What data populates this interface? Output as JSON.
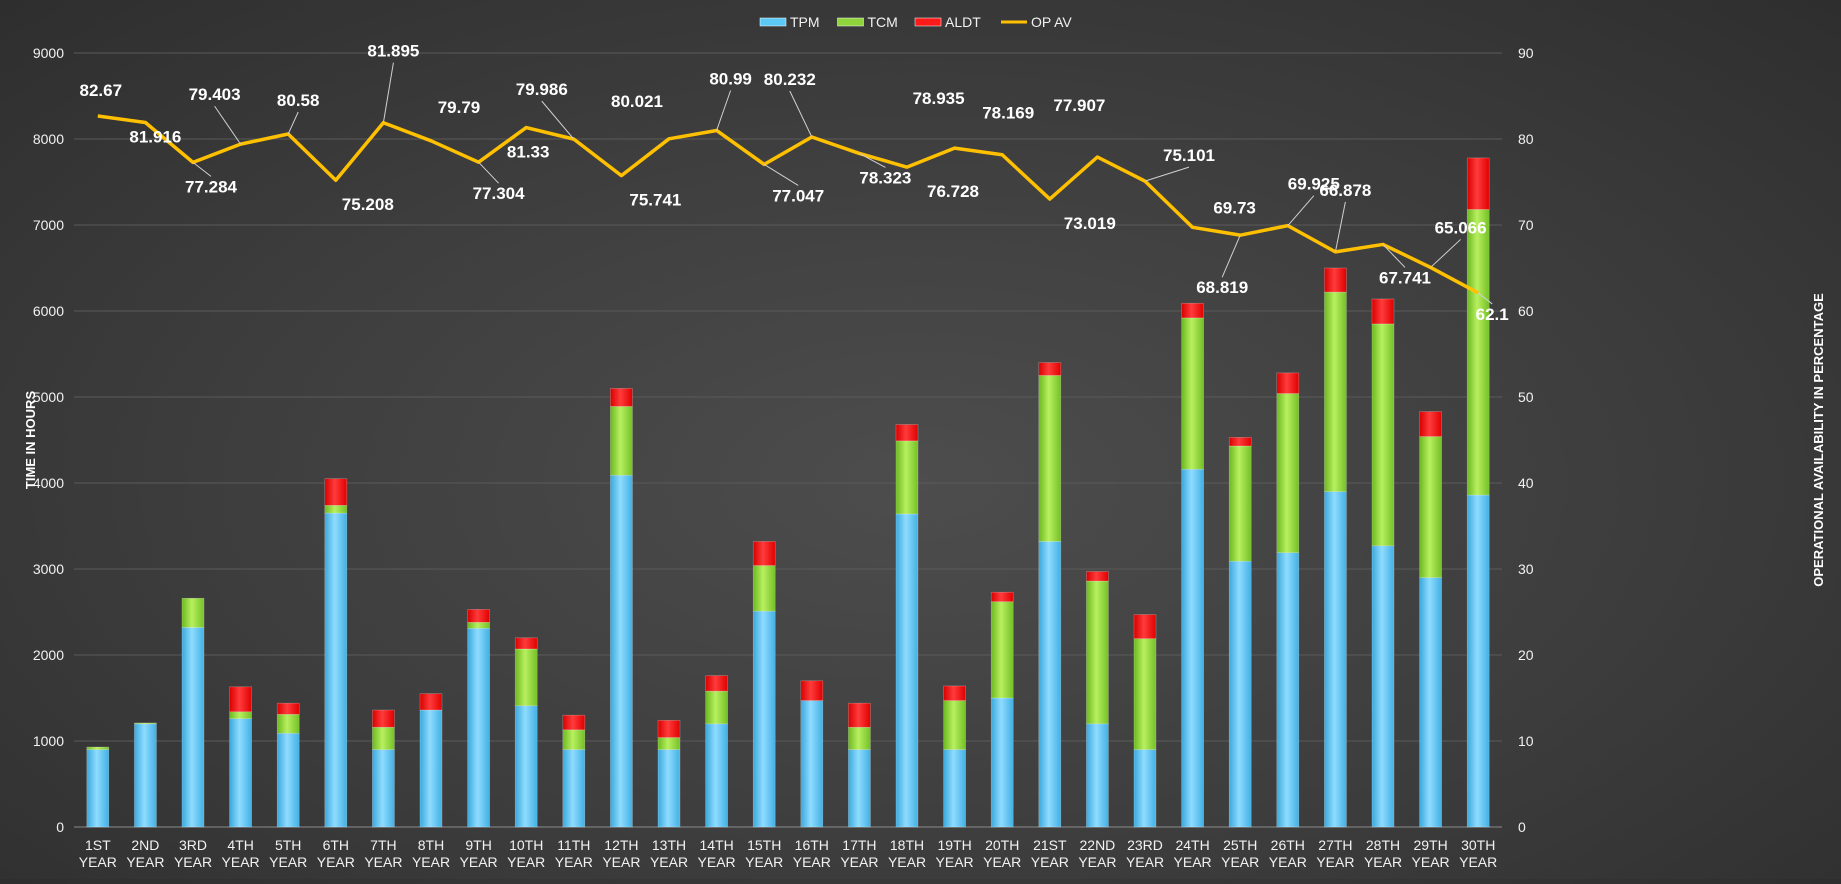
{
  "chart_data": {
    "type": "bar",
    "title": "",
    "ylabel": "TIME IN HOURS",
    "y2label": "OPERATIONAL AVAILABILITY IN PERCENTAGE",
    "ylim": [
      0,
      9000
    ],
    "y2lim": [
      0,
      90
    ],
    "yticks": [
      "0",
      "1000",
      "2000",
      "3000",
      "4000",
      "5000",
      "6000",
      "7000",
      "8000",
      "9000"
    ],
    "y2ticks": [
      "0",
      "10",
      "20",
      "30",
      "40",
      "50",
      "60",
      "70",
      "80",
      "90"
    ],
    "legend_position": "top-center",
    "grid": true,
    "categories": [
      [
        "1ST",
        "YEAR"
      ],
      [
        "2ND",
        "YEAR"
      ],
      [
        "3RD",
        "YEAR"
      ],
      [
        "4TH",
        "YEAR"
      ],
      [
        "5TH",
        "YEAR"
      ],
      [
        "6TH",
        "YEAR"
      ],
      [
        "7TH",
        "YEAR"
      ],
      [
        "8TH",
        "YEAR"
      ],
      [
        "9TH",
        "YEAR"
      ],
      [
        "10TH",
        "YEAR"
      ],
      [
        "11TH",
        "YEAR"
      ],
      [
        "12TH",
        "YEAR"
      ],
      [
        "13TH",
        "YEAR"
      ],
      [
        "14TH",
        "YEAR"
      ],
      [
        "15TH",
        "YEAR"
      ],
      [
        "16TH",
        "YEAR"
      ],
      [
        "17TH",
        "YEAR"
      ],
      [
        "18TH",
        "YEAR"
      ],
      [
        "19TH",
        "YEAR"
      ],
      [
        "20TH",
        "YEAR"
      ],
      [
        "21ST",
        "YEAR"
      ],
      [
        "22ND",
        "YEAR"
      ],
      [
        "23RD",
        "YEAR"
      ],
      [
        "24TH",
        "YEAR"
      ],
      [
        "25TH",
        "YEAR"
      ],
      [
        "26TH",
        "YEAR"
      ],
      [
        "27TH",
        "YEAR"
      ],
      [
        "28TH",
        "YEAR"
      ],
      [
        "29TH",
        "YEAR"
      ],
      [
        "30TH",
        "YEAR"
      ]
    ],
    "series": [
      {
        "name": "TPM",
        "stack": true,
        "axis": "left",
        "color": "#5bc8f5",
        "values": [
          900,
          1200,
          2320,
          1260,
          1090,
          3650,
          900,
          1360,
          2310,
          1410,
          900,
          4090,
          900,
          1200,
          2510,
          1470,
          900,
          3640,
          900,
          1500,
          3320,
          1200,
          900,
          4160,
          3090,
          3190,
          3900,
          3270,
          2900,
          3860
        ]
      },
      {
        "name": "TCM",
        "stack": true,
        "axis": "left",
        "color": "#8ed43a",
        "values": [
          30,
          10,
          340,
          80,
          220,
          90,
          260,
          0,
          70,
          660,
          230,
          800,
          140,
          380,
          530,
          0,
          260,
          850,
          570,
          1120,
          1930,
          1660,
          1290,
          1760,
          1340,
          1850,
          2320,
          2580,
          1640,
          3320
        ]
      },
      {
        "name": "ALDT",
        "stack": true,
        "axis": "left",
        "color": "#ff1a1a",
        "values": [
          0,
          0,
          0,
          290,
          130,
          310,
          200,
          190,
          150,
          130,
          170,
          210,
          200,
          180,
          280,
          230,
          280,
          190,
          170,
          110,
          150,
          110,
          280,
          170,
          100,
          240,
          280,
          290,
          290,
          600
        ]
      },
      {
        "name": "OP AV",
        "type": "line",
        "axis": "right",
        "color": "#ffc000",
        "values": [
          82.67,
          81.916,
          77.284,
          79.403,
          80.58,
          75.208,
          81.895,
          79.79,
          77.304,
          81.33,
          79.986,
          75.741,
          80.021,
          80.99,
          77.047,
          80.232,
          78.323,
          76.728,
          78.935,
          78.169,
          73.019,
          77.907,
          75.101,
          69.73,
          68.819,
          69.925,
          66.878,
          67.741,
          65.066,
          62.1
        ],
        "labels": [
          "82.67",
          "81.916",
          "77.284",
          "79.403",
          "80.58",
          "75.208",
          "81.895",
          "79.79",
          "77.304",
          "81.33",
          "79.986",
          "75.741",
          "80.021",
          "80.99",
          "77.047",
          "80.232",
          "78.323",
          "76.728",
          "78.935",
          "78.169",
          "73.019",
          "77.907",
          "75.101",
          "69.73",
          "68.819",
          "69.925",
          "66.878",
          "67.741",
          "65.066",
          "62.1"
        ]
      }
    ],
    "legend": [
      {
        "label": "TPM",
        "color": "#5bc8f5",
        "kind": "bar"
      },
      {
        "label": "TCM",
        "color": "#8ed43a",
        "kind": "bar"
      },
      {
        "label": "ALDT",
        "color": "#ff1a1a",
        "kind": "bar"
      },
      {
        "label": "OP AV",
        "color": "#ffc000",
        "kind": "line"
      }
    ]
  }
}
